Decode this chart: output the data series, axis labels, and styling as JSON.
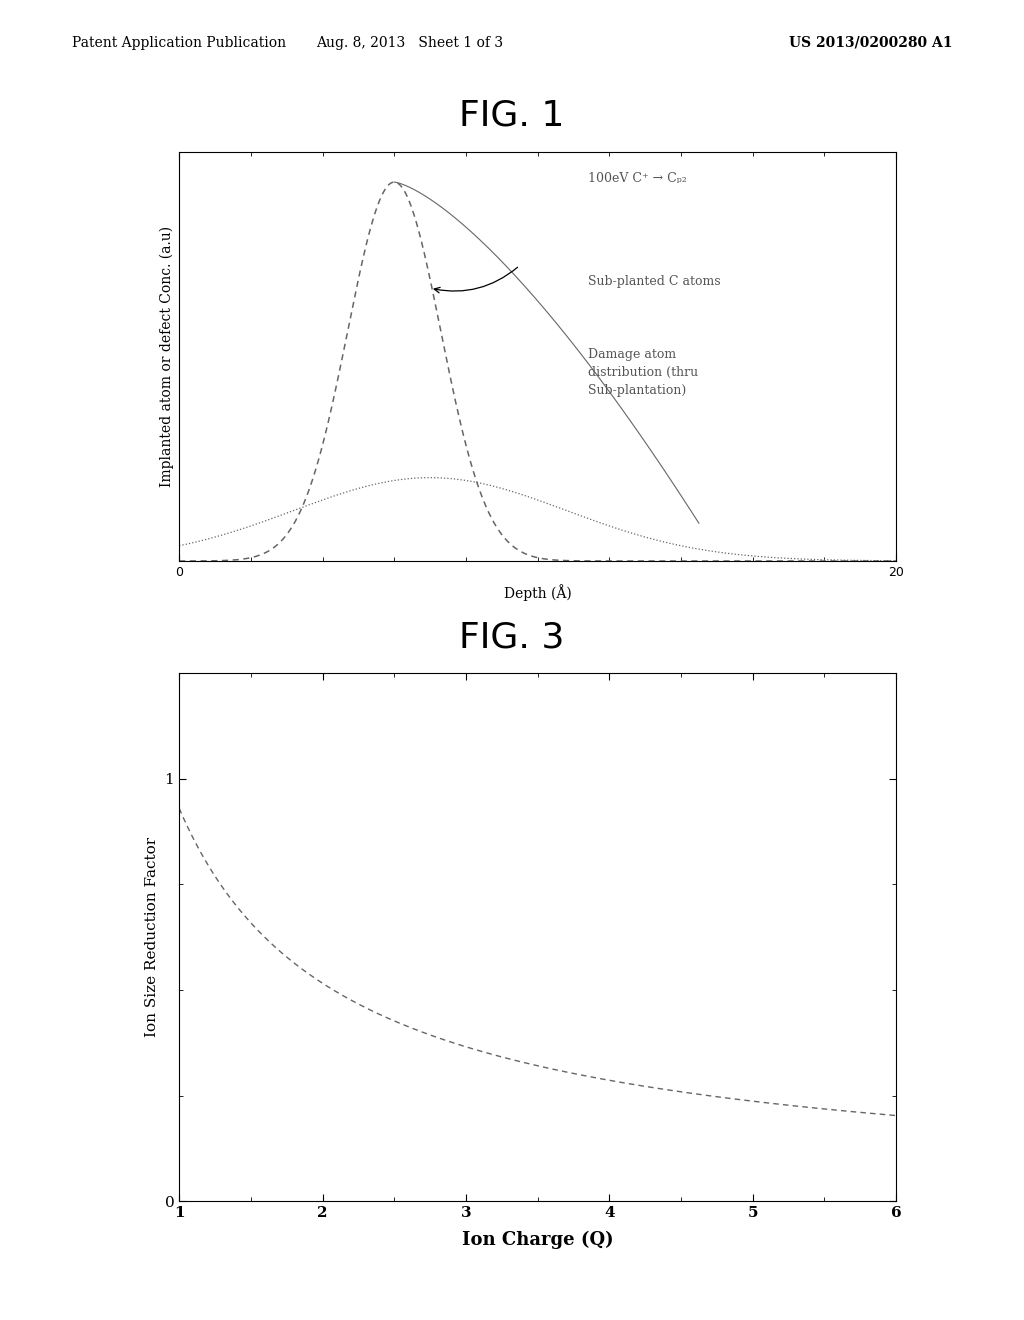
{
  "fig1_title": "FIG. 1",
  "fig3_title": "FIG. 3",
  "header_left": "Patent Application Publication",
  "header_center": "Aug. 8, 2013   Sheet 1 of 3",
  "header_right": "US 2013/0200280 A1",
  "fig1_xlabel": "Depth (Å)",
  "fig1_ylabel": "Implanted atom or defect Conc. (a.u)",
  "fig1_xlim": [
    0,
    20
  ],
  "fig1_ylim": [
    0,
    1.08
  ],
  "fig1_xticks": [
    0,
    20
  ],
  "fig1_annotation1": "100eV C⁺ → Cₚ₂",
  "fig1_annotation2": "Sub-planted C atoms",
  "fig1_annotation3": "Damage atom\ndistribution (thru\nSub-plantation)",
  "fig3_xlabel": "Ion Charge (Q)",
  "fig3_ylabel": "Ion Size Reduction Factor",
  "fig3_xlim": [
    1,
    6
  ],
  "fig3_ylim": [
    0,
    1.25
  ],
  "fig3_xticks": [
    1,
    2,
    3,
    4,
    5,
    6
  ],
  "fig3_yticks": [
    0,
    1
  ],
  "background_color": "#ffffff",
  "line_color_dark": "#666666",
  "line_color_mid": "#888888",
  "header_fontsize": 10,
  "title_fontsize": 26,
  "axis_label_fontsize": 10,
  "tick_fontsize": 9,
  "annotation_fontsize": 9
}
